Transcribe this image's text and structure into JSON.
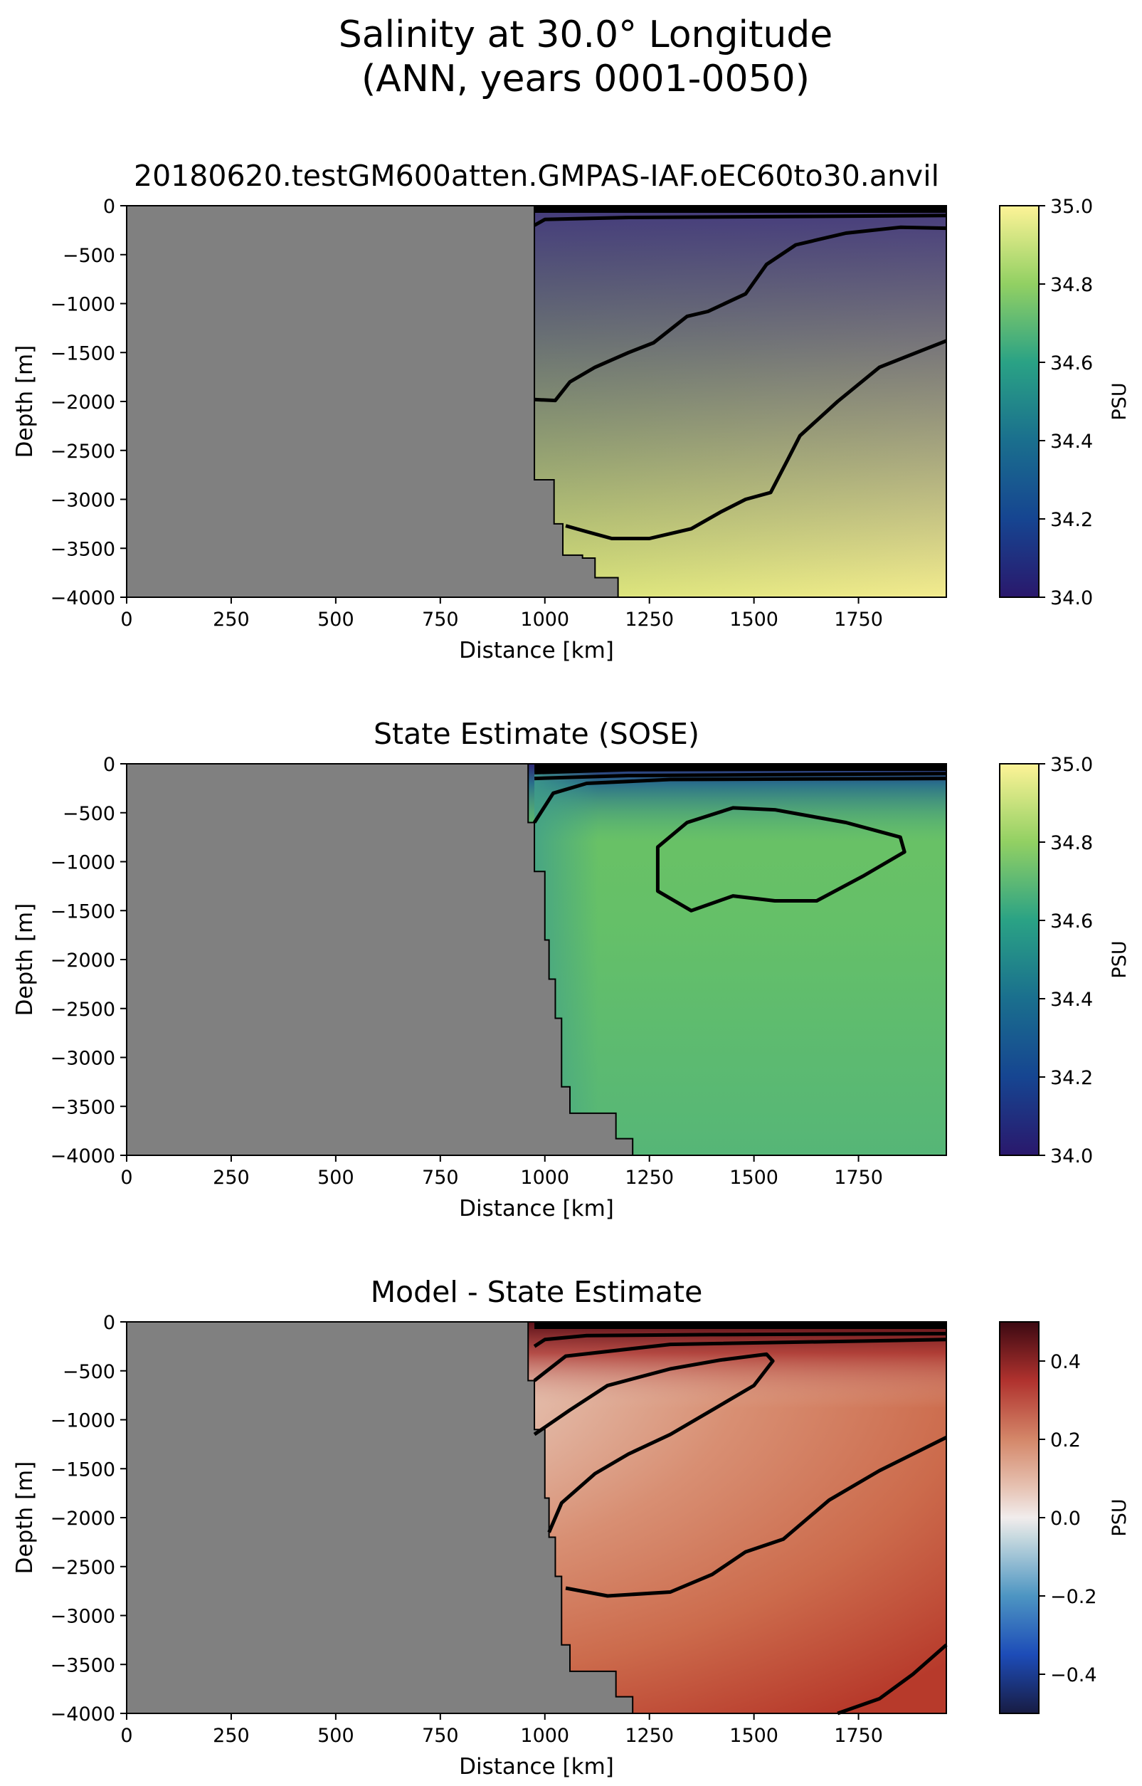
{
  "figure": {
    "title_line1": "Salinity at 30.0° Longitude",
    "title_line2": "(ANN, years 0001-0050)"
  },
  "chart_data": [
    {
      "type": "heatmap",
      "title": "20180620.testGM600atten.GMPAS-IAF.oEC60to30.anvil",
      "xlabel": "Distance [km]",
      "ylabel": "Depth [m]",
      "xlim": [
        0,
        1960
      ],
      "ylim": [
        -4000,
        0
      ],
      "xticks": [
        0,
        250,
        500,
        750,
        1000,
        1250,
        1500,
        1750
      ],
      "yticks": [
        0,
        -500,
        -1000,
        -1500,
        -2000,
        -2500,
        -3000,
        -3500,
        -4000
      ],
      "colorbar": {
        "label": "PSU",
        "min": 34.0,
        "max": 35.0,
        "ticks": [
          34.0,
          34.2,
          34.4,
          34.6,
          34.8,
          35.0
        ],
        "colormap": "haline"
      },
      "land_color": "#808080",
      "bathymetry": [
        [
          975,
          -2120
        ],
        [
          1022,
          -2800
        ],
        [
          1043,
          -3250
        ],
        [
          1043,
          -3570
        ],
        [
          1090,
          -3570
        ],
        [
          1120,
          -3600
        ],
        [
          1130,
          -3800
        ],
        [
          1175,
          -3800
        ],
        [
          1175,
          -4000
        ]
      ],
      "contours": [
        [
          [
            975,
            -200
          ],
          [
            1000,
            -140
          ],
          [
            1200,
            -120
          ],
          [
            1600,
            -110
          ],
          [
            1960,
            -100
          ]
        ],
        [
          [
            975,
            -1980
          ],
          [
            1025,
            -1990
          ],
          [
            1060,
            -1800
          ],
          [
            1120,
            -1650
          ],
          [
            1200,
            -1500
          ],
          [
            1260,
            -1400
          ],
          [
            1340,
            -1130
          ],
          [
            1390,
            -1080
          ],
          [
            1480,
            -900
          ],
          [
            1530,
            -600
          ],
          [
            1600,
            -400
          ],
          [
            1720,
            -280
          ],
          [
            1850,
            -220
          ],
          [
            1960,
            -230
          ]
        ],
        [
          [
            1050,
            -3270
          ],
          [
            1100,
            -3330
          ],
          [
            1160,
            -3400
          ],
          [
            1250,
            -3400
          ],
          [
            1350,
            -3300
          ],
          [
            1420,
            -3130
          ],
          [
            1480,
            -3000
          ],
          [
            1540,
            -2930
          ],
          [
            1580,
            -2600
          ],
          [
            1610,
            -2350
          ],
          [
            1700,
            -2000
          ],
          [
            1800,
            -1650
          ],
          [
            1960,
            -1380
          ]
        ]
      ]
    },
    {
      "type": "heatmap",
      "title": "State Estimate (SOSE)",
      "xlabel": "Distance [km]",
      "ylabel": "Depth [m]",
      "xlim": [
        0,
        1960
      ],
      "ylim": [
        -4000,
        0
      ],
      "xticks": [
        0,
        250,
        500,
        750,
        1000,
        1250,
        1500,
        1750
      ],
      "yticks": [
        0,
        -500,
        -1000,
        -1500,
        -2000,
        -2500,
        -3000,
        -3500,
        -4000
      ],
      "colorbar": {
        "label": "PSU",
        "min": 34.0,
        "max": 35.0,
        "ticks": [
          34.0,
          34.2,
          34.4,
          34.6,
          34.8,
          35.0
        ],
        "colormap": "haline"
      },
      "land_color": "#808080",
      "bathymetry": [
        [
          960,
          -100
        ],
        [
          975,
          -600
        ],
        [
          1000,
          -1100
        ],
        [
          1010,
          -1800
        ],
        [
          1025,
          -2200
        ],
        [
          1040,
          -2600
        ],
        [
          1060,
          -3300
        ],
        [
          1070,
          -3570
        ],
        [
          1170,
          -3570
        ],
        [
          1210,
          -3830
        ],
        [
          1210,
          -4000
        ]
      ],
      "contours": [
        [
          [
            975,
            -90
          ],
          [
            1200,
            -60
          ],
          [
            1960,
            -50
          ]
        ],
        [
          [
            975,
            -150
          ],
          [
            1200,
            -120
          ],
          [
            1960,
            -100
          ]
        ],
        [
          [
            975,
            -600
          ],
          [
            1020,
            -300
          ],
          [
            1100,
            -200
          ],
          [
            1300,
            -160
          ],
          [
            1960,
            -150
          ]
        ],
        [
          [
            [
              1270,
              -850
            ],
            [
              1340,
              -600
            ],
            [
              1450,
              -450
            ],
            [
              1550,
              -470
            ],
            [
              1720,
              -600
            ],
            [
              1850,
              -750
            ],
            [
              1860,
              -900
            ],
            [
              1760,
              -1150
            ],
            [
              1650,
              -1400
            ],
            [
              1550,
              -1400
            ],
            [
              1450,
              -1350
            ],
            [
              1350,
              -1500
            ],
            [
              1270,
              -1300
            ],
            [
              1270,
              -850
            ]
          ]
        ]
      ]
    },
    {
      "type": "heatmap",
      "title": "Model - State Estimate",
      "xlabel": "Distance [km]",
      "ylabel": "Depth [m]",
      "xlim": [
        0,
        1960
      ],
      "ylim": [
        -4000,
        0
      ],
      "xticks": [
        0,
        250,
        500,
        750,
        1000,
        1250,
        1500,
        1750
      ],
      "yticks": [
        0,
        -500,
        -1000,
        -1500,
        -2000,
        -2500,
        -3000,
        -3500,
        -4000
      ],
      "colorbar": {
        "label": "PSU",
        "min": -0.5,
        "max": 0.5,
        "ticks": [
          -0.4,
          -0.2,
          0.0,
          0.2,
          0.4
        ],
        "colormap": "balance"
      },
      "land_color": "#808080",
      "bathymetry": [
        [
          960,
          -100
        ],
        [
          975,
          -600
        ],
        [
          1000,
          -1100
        ],
        [
          1010,
          -1800
        ],
        [
          1025,
          -2200
        ],
        [
          1040,
          -2600
        ],
        [
          1060,
          -3300
        ],
        [
          1070,
          -3570
        ],
        [
          1170,
          -3570
        ],
        [
          1210,
          -3830
        ],
        [
          1210,
          -4000
        ]
      ],
      "contours": [
        [
          [
            975,
            -250
          ],
          [
            1000,
            -180
          ],
          [
            1100,
            -140
          ],
          [
            1400,
            -130
          ],
          [
            1960,
            -120
          ]
        ],
        [
          [
            975,
            -600
          ],
          [
            1050,
            -350
          ],
          [
            1300,
            -230
          ],
          [
            1960,
            -180
          ]
        ],
        [
          [
            975,
            -1150
          ],
          [
            1060,
            -900
          ],
          [
            1150,
            -650
          ],
          [
            1300,
            -480
          ],
          [
            1420,
            -390
          ],
          [
            1530,
            -330
          ],
          [
            1545,
            -400
          ],
          [
            1500,
            -650
          ],
          [
            1400,
            -900
          ],
          [
            1300,
            -1150
          ],
          [
            1200,
            -1350
          ],
          [
            1120,
            -1550
          ],
          [
            1040,
            -1850
          ],
          [
            1010,
            -2150
          ]
        ],
        [
          [
            1050,
            -2720
          ],
          [
            1150,
            -2800
          ],
          [
            1300,
            -2760
          ],
          [
            1400,
            -2580
          ],
          [
            1480,
            -2350
          ],
          [
            1570,
            -2220
          ],
          [
            1680,
            -1820
          ],
          [
            1800,
            -1520
          ],
          [
            1960,
            -1180
          ]
        ],
        [
          [
            1700,
            -4000
          ],
          [
            1800,
            -3850
          ],
          [
            1880,
            -3600
          ],
          [
            1960,
            -3300
          ]
        ]
      ]
    }
  ]
}
